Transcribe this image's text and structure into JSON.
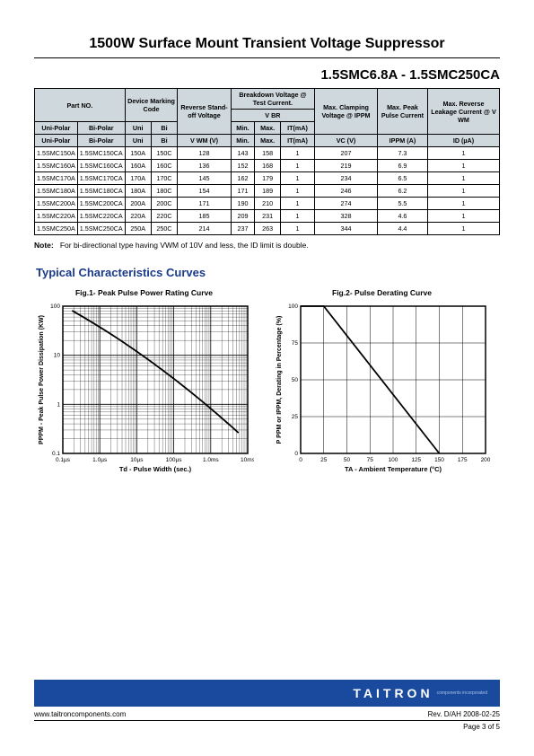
{
  "page": {
    "title": "1500W Surface Mount Transient Voltage Suppressor",
    "subtitle": "1.5SMC6.8A - 1.5SMC250CA",
    "note_label": "Note:",
    "note_text": "For bi-directional type having VWM of 10V and less, the ID limit is double.",
    "section_title": "Typical Characteristics Curves"
  },
  "table": {
    "header_bg": "#cfd8dd",
    "headers": {
      "partno": "Part NO.",
      "device_marking": "Device Marking Code",
      "reverse_standoff": "Reverse Stand-off Voltage",
      "breakdown": "Breakdown Voltage @ Test Current.",
      "vbr": "V BR",
      "max_clamping": "Max. Clamping Voltage @ IPPM",
      "max_peak_pulse": "Max. Peak Pulse Current",
      "max_reverse_leakage": "Max. Reverse Leakage Current @ V WM",
      "unipolar": "Uni-Polar",
      "bipolar": "Bi-Polar",
      "uni": "Uni",
      "bi": "Bi",
      "vwm": "V WM  (V)",
      "min": "Min.",
      "max": "Max.",
      "it": "IT(mA)",
      "vc": "VC  (V)",
      "ippm": "IPPM (A)",
      "id": "ID  (µA)"
    },
    "rows": [
      {
        "uni": "1.5SMC150A",
        "bi": "1.5SMC150CA",
        "muni": "150A",
        "mbi": "150C",
        "vwm": "128",
        "min": "143",
        "max": "158",
        "it": "1",
        "vc": "207",
        "ippm": "7.3",
        "id": "1"
      },
      {
        "uni": "1.5SMC160A",
        "bi": "1.5SMC160CA",
        "muni": "160A",
        "mbi": "160C",
        "vwm": "136",
        "min": "152",
        "max": "168",
        "it": "1",
        "vc": "219",
        "ippm": "6.9",
        "id": "1"
      },
      {
        "uni": "1.5SMC170A",
        "bi": "1.5SMC170CA",
        "muni": "170A",
        "mbi": "170C",
        "vwm": "145",
        "min": "162",
        "max": "179",
        "it": "1",
        "vc": "234",
        "ippm": "6.5",
        "id": "1"
      },
      {
        "uni": "1.5SMC180A",
        "bi": "1.5SMC180CA",
        "muni": "180A",
        "mbi": "180C",
        "vwm": "154",
        "min": "171",
        "max": "189",
        "it": "1",
        "vc": "246",
        "ippm": "6.2",
        "id": "1"
      },
      {
        "uni": "1.5SMC200A",
        "bi": "1.5SMC200CA",
        "muni": "200A",
        "mbi": "200C",
        "vwm": "171",
        "min": "190",
        "max": "210",
        "it": "1",
        "vc": "274",
        "ippm": "5.5",
        "id": "1"
      },
      {
        "uni": "1.5SMC220A",
        "bi": "1.5SMC220CA",
        "muni": "220A",
        "mbi": "220C",
        "vwm": "185",
        "min": "209",
        "max": "231",
        "it": "1",
        "vc": "328",
        "ippm": "4.6",
        "id": "1"
      },
      {
        "uni": "1.5SMC250A",
        "bi": "1.5SMC250CA",
        "muni": "250A",
        "mbi": "250C",
        "vwm": "214",
        "min": "237",
        "max": "263",
        "it": "1",
        "vc": "344",
        "ippm": "4.4",
        "id": "1"
      }
    ]
  },
  "chart1": {
    "type": "line-loglog",
    "title": "Fig.1- Peak Pulse Power Rating Curve",
    "xlabel": "Td - Pulse Width (sec.)",
    "ylabel": "PPPM - Peak Pulse Power Dissipation (KW)",
    "x_ticks": [
      "0.1µs",
      "1.0µs",
      "10µs",
      "100µs",
      "1.0ms",
      "10ms"
    ],
    "y_ticks": [
      "0.1",
      "1",
      "10",
      "100"
    ],
    "line_color": "#000000",
    "grid_color": "#000000",
    "background": "#ffffff",
    "line_points": [
      [
        0.05,
        0.03
      ],
      [
        0.95,
        0.86
      ]
    ]
  },
  "chart2": {
    "type": "line",
    "title": "Fig.2- Pulse Derating Curve",
    "xlabel": "TA - Ambient Temperature (°C)",
    "ylabel": "P PPM or IPPM, Derating in Percentage (%)",
    "x_ticks": [
      "0",
      "25",
      "50",
      "75",
      "100",
      "125",
      "150",
      "175",
      "200"
    ],
    "y_ticks": [
      "0",
      "25",
      "50",
      "75",
      "100"
    ],
    "line_color": "#000000",
    "grid_color": "#000000",
    "background": "#ffffff",
    "line_points": [
      [
        0.125,
        0.0
      ],
      [
        0.75,
        1.0
      ]
    ]
  },
  "footer": {
    "logo_main": "TAITRON",
    "logo_sub": "components incorporated",
    "url": "www.taitroncomponents.com",
    "rev": "Rev. D/AH 2008-02-25",
    "page": "Page 3 of 5",
    "bar_bg": "#1a4a9e"
  }
}
